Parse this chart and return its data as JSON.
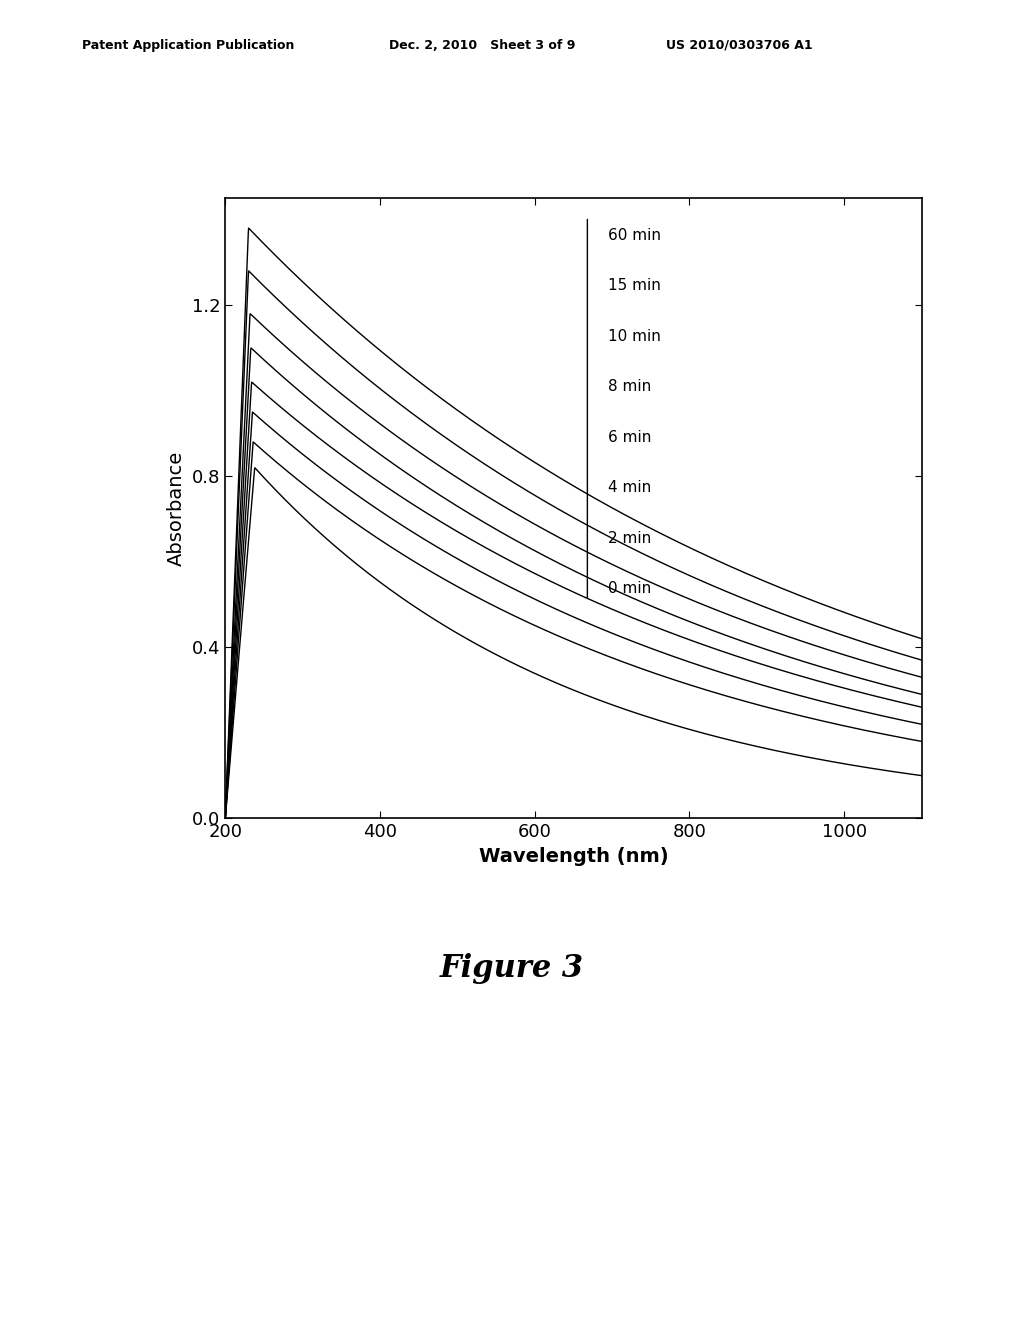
{
  "title": "",
  "xlabel": "Wavelength (nm)",
  "ylabel": "Absorbance",
  "xlim": [
    200,
    1100
  ],
  "ylim": [
    0.0,
    1.45
  ],
  "xticks": [
    200,
    400,
    600,
    800,
    1000
  ],
  "yticks": [
    0.0,
    0.4,
    0.8,
    1.2
  ],
  "legend_labels": [
    "60 min",
    "15 min",
    "10 min",
    "8 min",
    "6 min",
    "4 min",
    "2 min",
    "0 min"
  ],
  "peak_wavelengths": [
    230,
    230,
    232,
    233,
    234,
    235,
    236,
    238
  ],
  "peak_absorbances": [
    1.38,
    1.28,
    1.18,
    1.1,
    1.02,
    0.95,
    0.88,
    0.82
  ],
  "tail_absorbances": [
    0.42,
    0.37,
    0.33,
    0.29,
    0.26,
    0.22,
    0.18,
    0.1
  ],
  "background_color": "#ffffff",
  "line_color": "#000000",
  "figure_caption": "Figure 3",
  "header_left": "Patent Application Publication",
  "header_mid": "Dec. 2, 2010   Sheet 3 of 9",
  "header_right": "US 2010/0303706 A1"
}
